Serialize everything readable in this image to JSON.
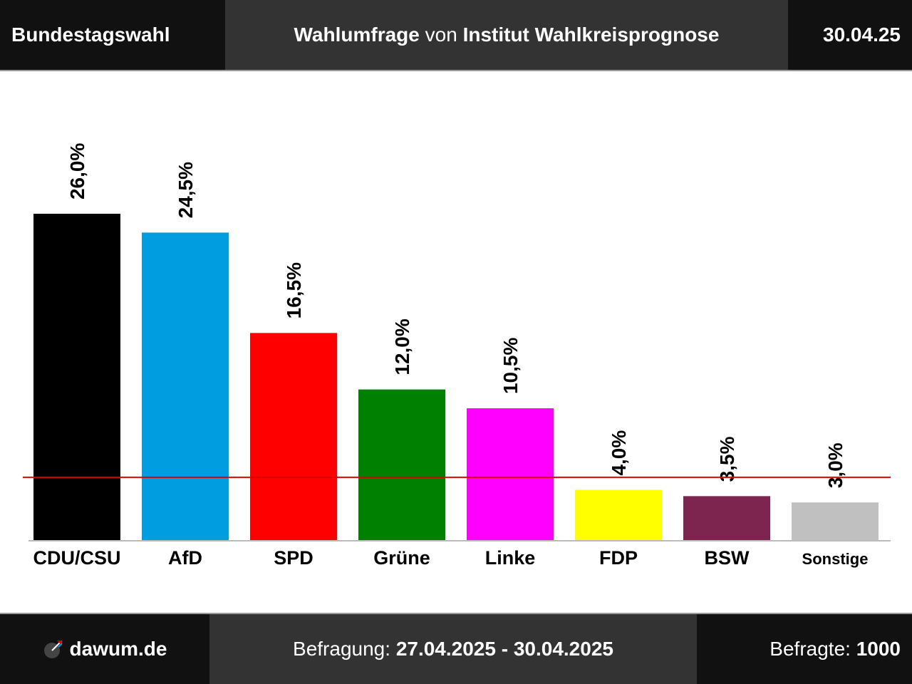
{
  "header": {
    "left": "Bundestagswahl",
    "center_bold_1": "Wahlumfrage",
    "center_normal": " von ",
    "center_bold_2": "Institut Wahlkreisprognose",
    "right": "30.04.25"
  },
  "footer": {
    "brand": "dawum.de",
    "period_label": "Befragung: ",
    "period_value": "27.04.2025 - 30.04.2025",
    "respondents_label": "Befragte: ",
    "respondents_value": "1000"
  },
  "chart_data": {
    "type": "bar",
    "categories": [
      "CDU/CSU",
      "AfD",
      "SPD",
      "Grüne",
      "Linke",
      "FDP",
      "BSW",
      "Sonstige"
    ],
    "values": [
      26.0,
      24.5,
      16.5,
      12.0,
      10.5,
      4.0,
      3.5,
      3.0
    ],
    "value_labels": [
      "26,0%",
      "24,5%",
      "16,5%",
      "12,0%",
      "10,5%",
      "4,0%",
      "3,5%",
      "3,0%"
    ],
    "colors": [
      "#000000",
      "#009ee0",
      "#ff0000",
      "#008000",
      "#ff00ff",
      "#ffff00",
      "#7d254f",
      "#c0c0c0"
    ],
    "threshold": 5.0,
    "threshold_color": "#e00000",
    "ylim": [
      0,
      30
    ],
    "grid": false,
    "legend": "none"
  }
}
